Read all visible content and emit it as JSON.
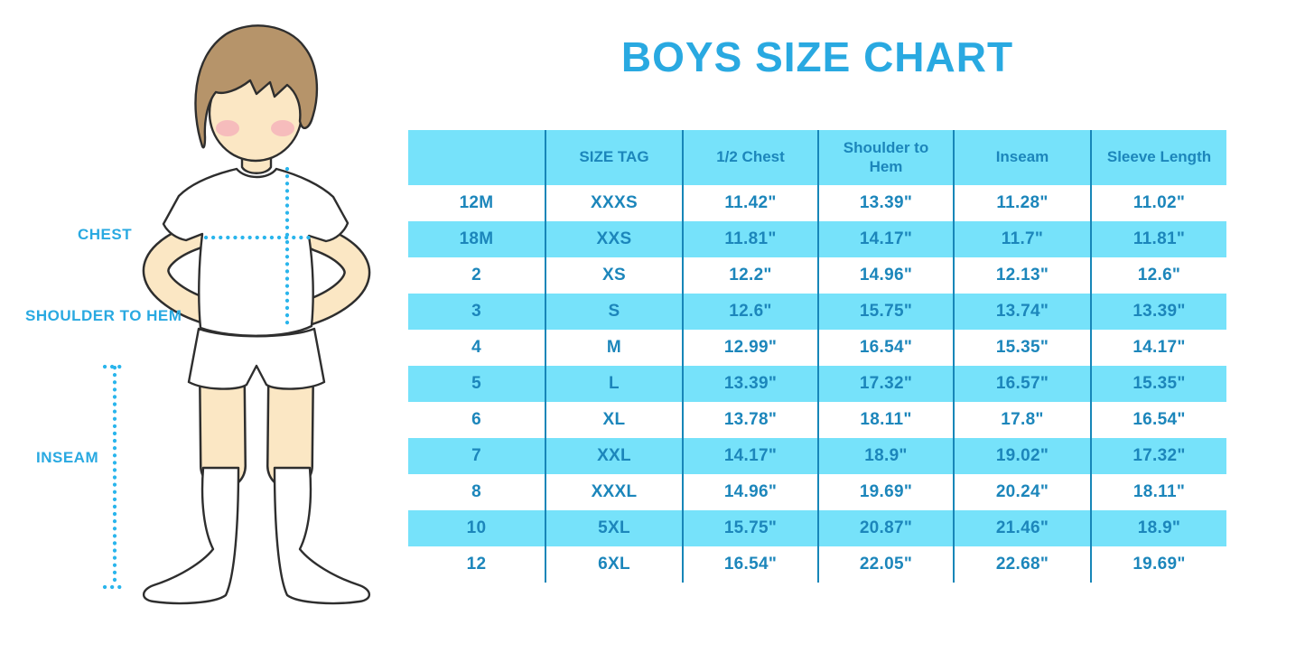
{
  "title": "BOYS SIZE CHART",
  "diagram": {
    "labels": {
      "chest": "CHEST",
      "shoulder_to_hem": "SHOULDER TO HEM",
      "inseam": "INSEAM"
    }
  },
  "colors": {
    "accent": "#29A9E1",
    "dot": "#2AB5EC",
    "row_cyan": "#76E2FA",
    "line": "#1786B8",
    "table_text": "#1C86BB",
    "skin": "#FBE7C4",
    "hair": "#B6946A",
    "blush": "#F3A9B9"
  },
  "chart_data": {
    "type": "table",
    "title": "BOYS SIZE CHART",
    "columns": [
      "",
      "SIZE TAG",
      "1/2 Chest",
      "Shoulder to Hem",
      "Inseam",
      "Sleeve Length"
    ],
    "rows": [
      [
        "12M",
        "XXXS",
        "11.42\"",
        "13.39\"",
        "11.28\"",
        "11.02\""
      ],
      [
        "18M",
        "XXS",
        "11.81\"",
        "14.17\"",
        "11.7\"",
        "11.81\""
      ],
      [
        "2",
        "XS",
        "12.2\"",
        "14.96\"",
        "12.13\"",
        "12.6\""
      ],
      [
        "3",
        "S",
        "12.6\"",
        "15.75\"",
        "13.74\"",
        "13.39\""
      ],
      [
        "4",
        "M",
        "12.99\"",
        "16.54\"",
        "15.35\"",
        "14.17\""
      ],
      [
        "5",
        "L",
        "13.39\"",
        "17.32\"",
        "16.57\"",
        "15.35\""
      ],
      [
        "6",
        "XL",
        "13.78\"",
        "18.11\"",
        "17.8\"",
        "16.54\""
      ],
      [
        "7",
        "XXL",
        "14.17\"",
        "18.9\"",
        "19.02\"",
        "17.32\""
      ],
      [
        "8",
        "XXXL",
        "14.96\"",
        "19.69\"",
        "20.24\"",
        "18.11\""
      ],
      [
        "10",
        "5XL",
        "15.75\"",
        "20.87\"",
        "21.46\"",
        "18.9\""
      ],
      [
        "12",
        "6XL",
        "16.54\"",
        "22.05\"",
        "22.68\"",
        "19.69\""
      ]
    ],
    "row_stripe_pattern": "white, cyan alternating starting with white",
    "grid": "vertical column separators only, no outer border"
  }
}
